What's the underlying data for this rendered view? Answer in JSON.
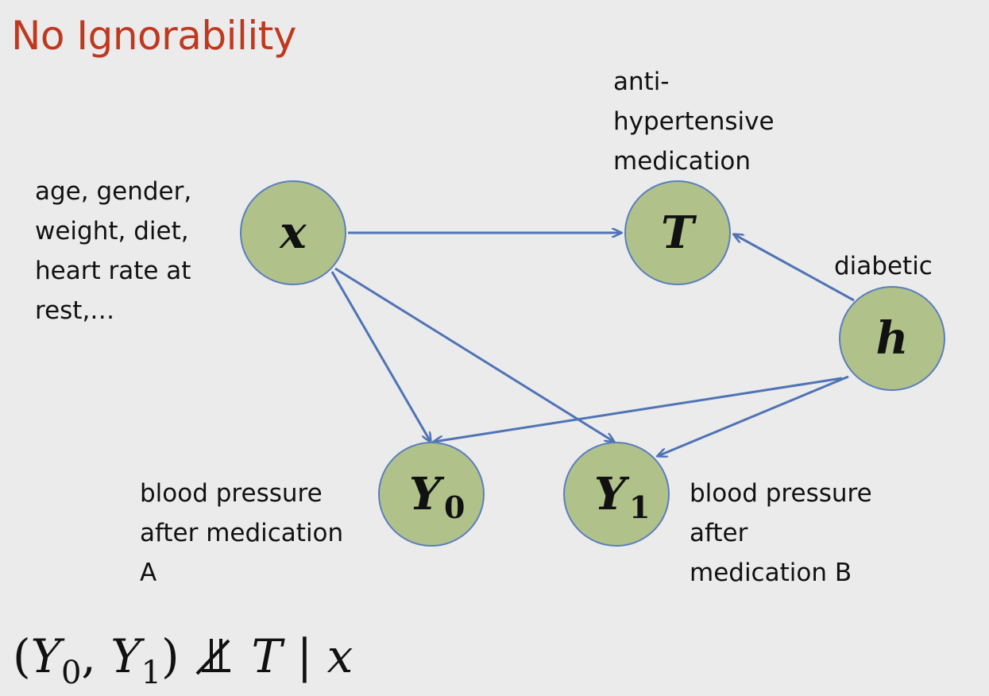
{
  "title": "No Ignorability",
  "labels": {
    "covariates": [
      "age, gender,",
      "weight, diet,",
      "heart rate at",
      "rest,…"
    ],
    "treatment": [
      "anti-",
      "hypertensive",
      "medication"
    ],
    "hidden": [
      "diabetic"
    ],
    "y0": [
      "blood pressure",
      "after medication",
      "A"
    ],
    "y1": [
      "blood pressure",
      "after",
      "medication B"
    ]
  },
  "nodes": [
    {
      "id": "x",
      "letter": "x",
      "sub": ""
    },
    {
      "id": "T",
      "letter": "T",
      "sub": ""
    },
    {
      "id": "h",
      "letter": "h",
      "sub": ""
    },
    {
      "id": "Y0",
      "letter": "Y",
      "sub": "0"
    },
    {
      "id": "Y1",
      "letter": "Y",
      "sub": "1"
    }
  ],
  "edges": [
    {
      "from": "x",
      "to": "T"
    },
    {
      "from": "h",
      "to": "T"
    },
    {
      "from": "x",
      "to": "Y0"
    },
    {
      "from": "x",
      "to": "Y1"
    },
    {
      "from": "h",
      "to": "Y0"
    },
    {
      "from": "h",
      "to": "Y1"
    }
  ],
  "formula": {
    "open": "(",
    "y0": "Y",
    "y0_sub": "0",
    "comma": ",",
    "y1": "Y",
    "y1_sub": "1",
    "close": ")",
    "t": "T",
    "bar": "|",
    "x": "x"
  },
  "colors": {
    "title": "#c0391f",
    "node_fill": "#b0c18a",
    "node_stroke": "#5b7fbd",
    "edge": "#4f73b5",
    "background": "#ebebeb"
  }
}
